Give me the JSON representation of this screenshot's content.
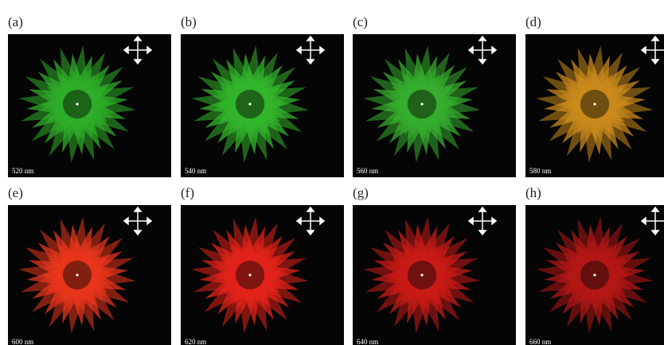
{
  "panels": [
    {
      "label": "(a)",
      "wavelength": "520 nm",
      "color": "#2fae2a"
    },
    {
      "label": "(b)",
      "wavelength": "540 nm",
      "color": "#33b52c"
    },
    {
      "label": "(c)",
      "wavelength": "560 nm",
      "color": "#36ad2e"
    },
    {
      "label": "(d)",
      "wavelength": "580 nm",
      "color": "#c98a1c"
    },
    {
      "label": "(e)",
      "wavelength": "600 nm",
      "color": "#e8361c"
    },
    {
      "label": "(f)",
      "wavelength": "620 nm",
      "color": "#e2231a"
    },
    {
      "label": "(g)",
      "wavelength": "640 nm",
      "color": "#c81b17"
    },
    {
      "label": "(h)",
      "wavelength": "660 nm",
      "color": "#b31816"
    }
  ]
}
